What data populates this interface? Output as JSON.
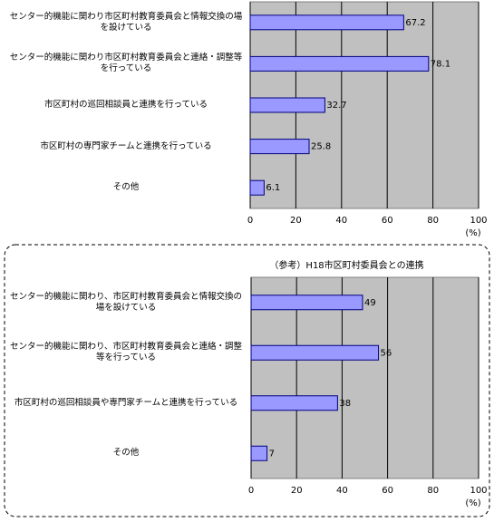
{
  "chart_data": [
    {
      "type": "bar",
      "orientation": "horizontal",
      "categories": [
        "センター的機能に関わり市区町村教育委員会と情報交換の場を設けている",
        "センター的機能に関わり市区町村教育委員会と連絡・調整等を行っている",
        "市区町村の巡回相談員と連携を行っている",
        "市区町村の専門家チームと連携を行っている",
        "その他"
      ],
      "values": [
        67.2,
        78.1,
        32.7,
        25.8,
        6.1
      ],
      "color": "#9999ff",
      "xlim": [
        0,
        100
      ],
      "xticks": [
        0,
        20,
        40,
        60,
        80,
        100
      ],
      "x_label": "(%)",
      "grid": true
    },
    {
      "type": "bar",
      "orientation": "horizontal",
      "title": "（参考）H18市区町村委員会との連携",
      "categories": [
        "センター的機能に関わり、市区町村教育委員会と情報交換の場を設けている",
        "センター的機能に関わり、市区町村教育委員会と連絡・調整等を行っている",
        "市区町村の巡回相談員や専門家チームと連携を行っている",
        "その他"
      ],
      "values": [
        49,
        56,
        38,
        7
      ],
      "color": "#9999ff",
      "xlim": [
        0,
        100
      ],
      "xticks": [
        0,
        20,
        40,
        60,
        80,
        100
      ],
      "x_label": "(%)",
      "grid": true
    }
  ]
}
